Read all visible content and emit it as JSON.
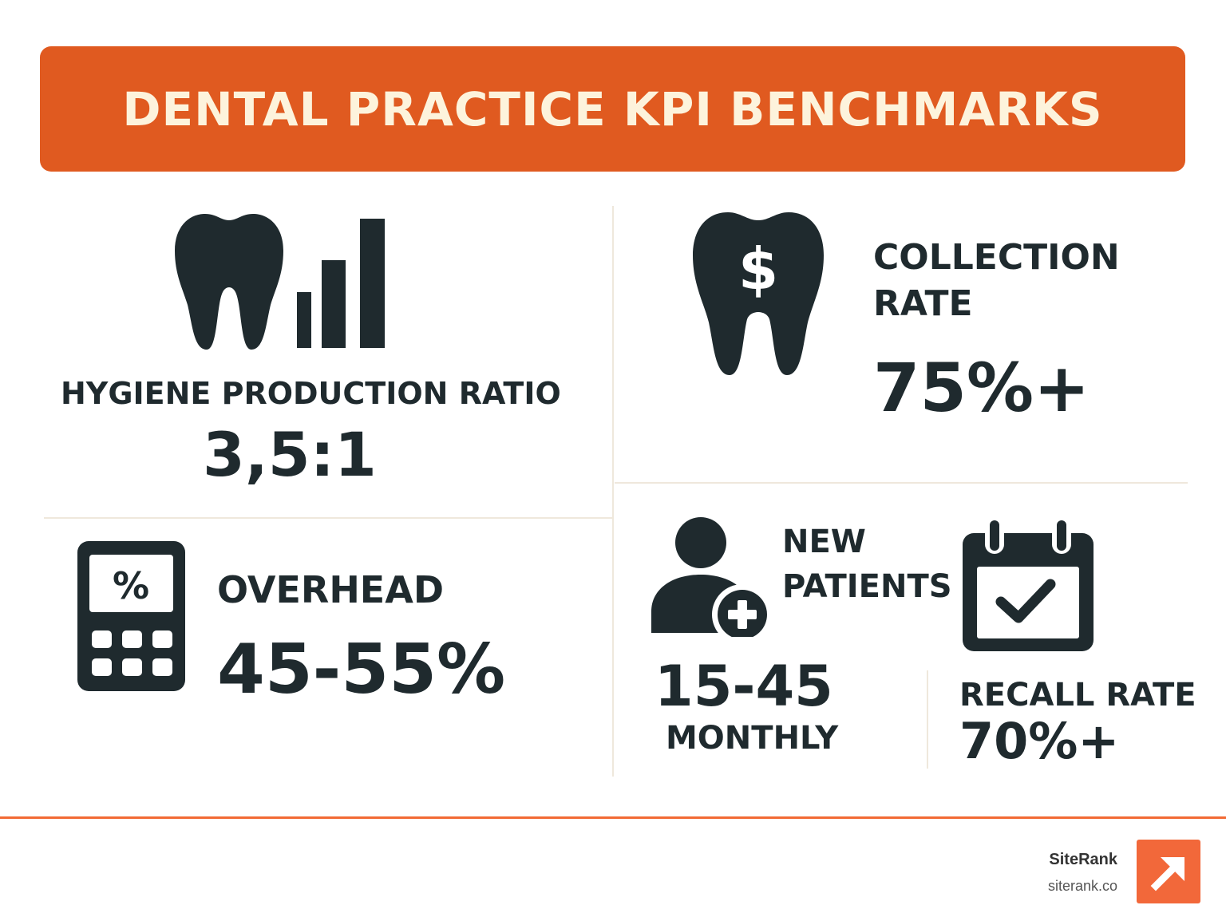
{
  "title": "DENTAL PRACTICE KPI BENCHMARKS",
  "hygiene": {
    "label": "HYGIENE PRODUCTION RATIO",
    "value": "3,5:1",
    "icon": "tooth-bar-chart-icon"
  },
  "collection": {
    "label_line1": "COLLECTION",
    "label_line2": "RATE",
    "value": "75%+",
    "icon": "tooth-dollar-icon"
  },
  "overhead": {
    "label": "OVERHEAD",
    "value": "45-55%",
    "icon": "calculator-percent-icon",
    "icon_glyph": "%"
  },
  "new_patients": {
    "label_line1": "NEW",
    "label_line2": "PATIENTS",
    "value": "15-45",
    "unit": "MONTHLY",
    "icon": "user-add-icon"
  },
  "recall": {
    "label": "RECALL RATE",
    "value": "70%+",
    "icon": "calendar-check-icon"
  },
  "brand": {
    "name": "SiteRank",
    "url": "siterank.co",
    "icon": "arrow-up-right-icon"
  },
  "colors": {
    "accent": "#e05a20",
    "title_text": "#fdf3dc",
    "dark": "#1f2a2e",
    "footer_line": "#f26a35"
  }
}
